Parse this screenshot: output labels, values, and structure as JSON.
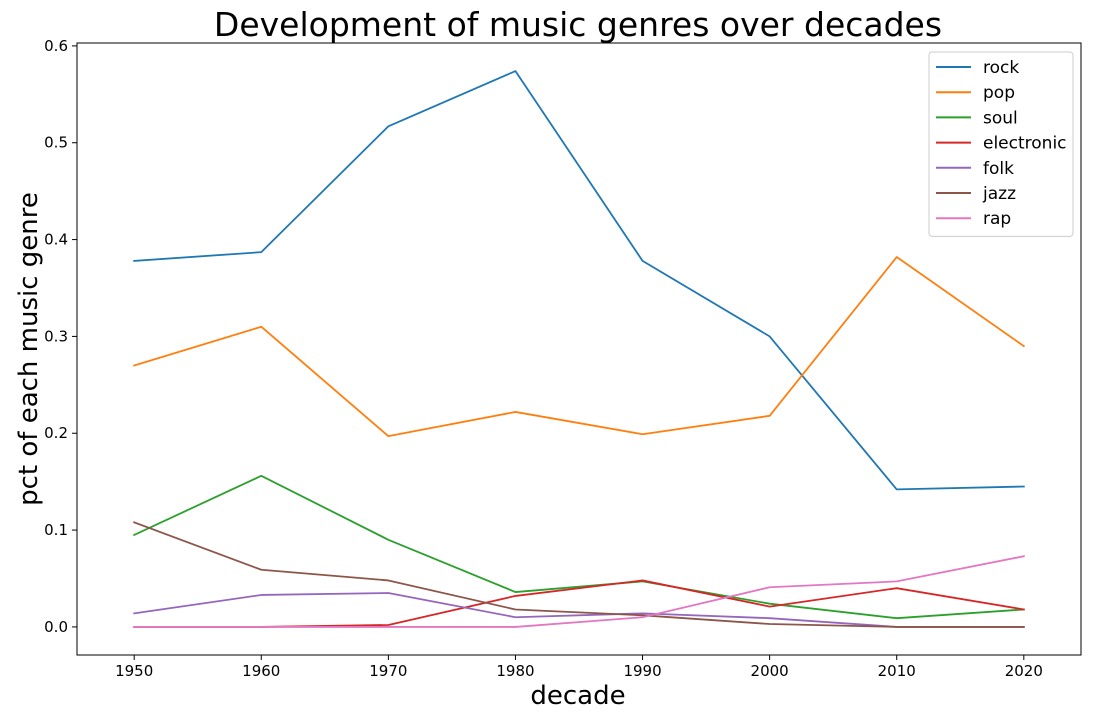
{
  "chart_data": {
    "type": "line",
    "title": "Development of music genres over decades",
    "xlabel": "decade",
    "ylabel": "pct of each music genre",
    "x": [
      1950,
      1960,
      1970,
      1980,
      1990,
      2000,
      2010,
      2020
    ],
    "xlim": [
      1945.5,
      2024.5
    ],
    "ylim": [
      -0.029,
      0.603
    ],
    "xticks": [
      "1950",
      "1960",
      "1970",
      "1980",
      "1990",
      "2000",
      "2010",
      "2020"
    ],
    "yticks": [
      "0.0",
      "0.1",
      "0.2",
      "0.3",
      "0.4",
      "0.5",
      "0.6"
    ],
    "ytick_values": [
      0.0,
      0.1,
      0.2,
      0.3,
      0.4,
      0.5,
      0.6
    ],
    "grid": false,
    "legend_position": "top-right",
    "series": [
      {
        "name": "rock",
        "color": "#1f77b4",
        "values": [
          0.378,
          0.387,
          0.517,
          0.574,
          0.378,
          0.3,
          0.142,
          0.145
        ]
      },
      {
        "name": "pop",
        "color": "#ff7f0e",
        "values": [
          0.27,
          0.31,
          0.197,
          0.222,
          0.199,
          0.218,
          0.382,
          0.29
        ]
      },
      {
        "name": "soul",
        "color": "#2ca02c",
        "values": [
          0.095,
          0.156,
          0.09,
          0.036,
          0.047,
          0.024,
          0.009,
          0.018
        ]
      },
      {
        "name": "electronic",
        "color": "#d62728",
        "values": [
          0.0,
          0.0,
          0.002,
          0.032,
          0.048,
          0.021,
          0.04,
          0.018
        ]
      },
      {
        "name": "folk",
        "color": "#9467bd",
        "values": [
          0.014,
          0.033,
          0.035,
          0.01,
          0.014,
          0.009,
          0.0,
          0.0
        ]
      },
      {
        "name": "jazz",
        "color": "#8c564b",
        "values": [
          0.108,
          0.059,
          0.048,
          0.018,
          0.012,
          0.003,
          0.0,
          0.0
        ]
      },
      {
        "name": "rap",
        "color": "#e377c2",
        "values": [
          0.0,
          0.0,
          0.0,
          0.0,
          0.01,
          0.041,
          0.047,
          0.073
        ]
      }
    ]
  }
}
